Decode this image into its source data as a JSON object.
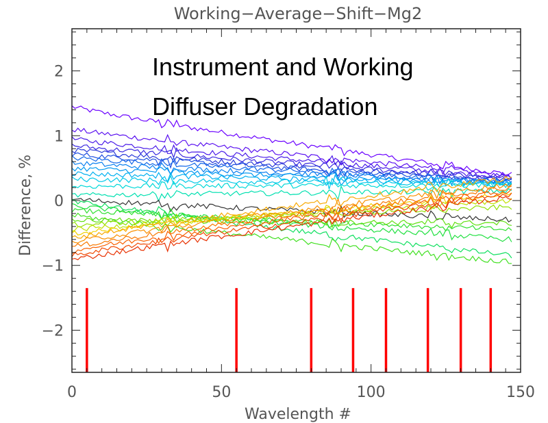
{
  "chart_data": {
    "type": "line",
    "title": "Working−Average−Shift−Mg2",
    "xlabel": "Wavelength #",
    "ylabel": "Difference, %",
    "xlim": [
      0,
      150
    ],
    "ylim": [
      -2.65,
      2.65
    ],
    "xticks": [
      0,
      50,
      100,
      150
    ],
    "xtick_labels": [
      "0",
      "50",
      "100",
      "150"
    ],
    "yticks": [
      2,
      1,
      0,
      -1,
      -2
    ],
    "ytick_labels": [
      "2",
      "1",
      "0",
      "−1",
      "−2"
    ],
    "annotation": [
      "Instrument and Working",
      "Diffuser Degradation"
    ],
    "n_points": 148,
    "series": [
      {
        "color": "#6a00ff",
        "y_start": 1.45,
        "y_end": 0.4
      },
      {
        "color": "#5a10f0",
        "y_start": 1.1,
        "y_end": 0.38
      },
      {
        "color": "#4a1ce8",
        "y_start": 0.95,
        "y_end": 0.36
      },
      {
        "color": "#3a28e0",
        "y_start": 0.85,
        "y_end": 0.33
      },
      {
        "color": "#2a3ad8",
        "y_start": 0.78,
        "y_end": 0.32
      },
      {
        "color": "#2050e0",
        "y_start": 0.72,
        "y_end": 0.3
      },
      {
        "color": "#1468e8",
        "y_start": 0.66,
        "y_end": 0.29
      },
      {
        "color": "#0a80f0",
        "y_start": 0.58,
        "y_end": 0.28
      },
      {
        "color": "#0098f0",
        "y_start": 0.5,
        "y_end": 0.27
      },
      {
        "color": "#00b0f0",
        "y_start": 0.42,
        "y_end": 0.26
      },
      {
        "color": "#00c8e8",
        "y_start": 0.33,
        "y_end": 0.25
      },
      {
        "color": "#00d8d8",
        "y_start": 0.22,
        "y_end": 0.24
      },
      {
        "color": "#00e0b0",
        "y_start": 0.08,
        "y_end": 0.15
      },
      {
        "color": "#333333",
        "y_start": 0.02,
        "y_end": -0.3
      },
      {
        "color": "#10e060",
        "y_start": 0.0,
        "y_end": -0.85
      },
      {
        "color": "#20e040",
        "y_start": -0.08,
        "y_end": -0.6
      },
      {
        "color": "#30e030",
        "y_start": -0.15,
        "y_end": -0.45
      },
      {
        "color": "#40e020",
        "y_start": -0.22,
        "y_end": -0.95
      },
      {
        "color": "#60e010",
        "y_start": -0.3,
        "y_end": -0.35
      },
      {
        "color": "#90e000",
        "y_start": -0.38,
        "y_end": -0.1
      },
      {
        "color": "#c0e000",
        "y_start": -0.45,
        "y_end": 0.0
      },
      {
        "color": "#f0d000",
        "y_start": -0.52,
        "y_end": 0.1
      },
      {
        "color": "#f8a800",
        "y_start": -0.58,
        "y_end": 0.35
      },
      {
        "color": "#f89000",
        "y_start": -0.65,
        "y_end": 0.25
      },
      {
        "color": "#f87800",
        "y_start": -0.72,
        "y_end": 0.2
      },
      {
        "color": "#f86000",
        "y_start": -0.78,
        "y_end": 0.15
      },
      {
        "color": "#f04800",
        "y_start": -0.85,
        "y_end": 0.1
      },
      {
        "color": "#e83000",
        "y_start": -0.92,
        "y_end": 0.05
      }
    ],
    "markers": {
      "color": "#ff0000",
      "x": [
        5,
        55,
        80,
        94,
        105,
        119,
        130,
        140
      ],
      "y_from": -2.65,
      "y_to": -1.35
    }
  }
}
